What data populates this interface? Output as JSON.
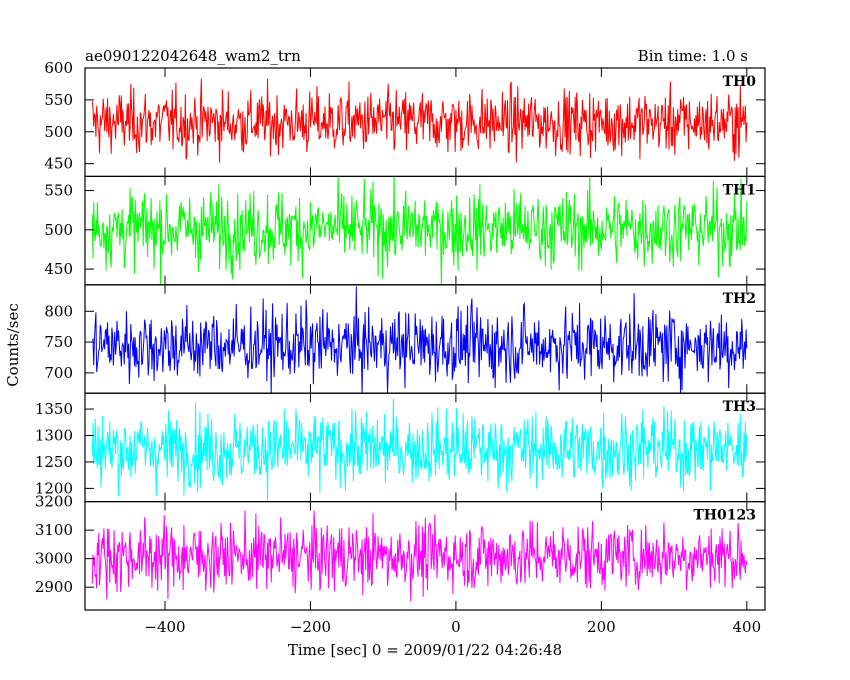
{
  "title_left": "ae090122042648_wam2_trn",
  "title_right": "Bin time: 1.0 s",
  "chart_data": {
    "type": "line",
    "xlabel": "Time [sec] 0 = 2009/01/22 04:26:48",
    "ylabel": "Counts/sec",
    "xlim": [
      -510,
      425
    ],
    "xticks": [
      -400,
      -200,
      0,
      200,
      400
    ],
    "x_range": [
      -500,
      400
    ],
    "bin_time_s": 1.0,
    "grid": false,
    "panels": [
      {
        "name": "TH0",
        "color": "#ff0000",
        "ylim": [
          430,
          600
        ],
        "yticks": [
          450,
          500,
          550,
          600
        ],
        "mean": 515,
        "sigma": 25
      },
      {
        "name": "TH1",
        "color": "#00ff00",
        "ylim": [
          430,
          568
        ],
        "yticks": [
          450,
          500,
          550
        ],
        "mean": 502,
        "sigma": 24
      },
      {
        "name": "TH2",
        "color": "#0000ff",
        "ylim": [
          667,
          843
        ],
        "yticks": [
          700,
          750,
          800
        ],
        "mean": 745,
        "sigma": 30
      },
      {
        "name": "TH3",
        "color": "#00ffff",
        "ylim": [
          1175,
          1380
        ],
        "yticks": [
          1200,
          1250,
          1300,
          1350
        ],
        "mean": 1275,
        "sigma": 35
      },
      {
        "name": "TH0123",
        "color": "#ff00ff",
        "ylim": [
          2820,
          3200
        ],
        "yticks": [
          2900,
          3000,
          3100,
          3200
        ],
        "mean": 3010,
        "sigma": 60
      }
    ]
  }
}
